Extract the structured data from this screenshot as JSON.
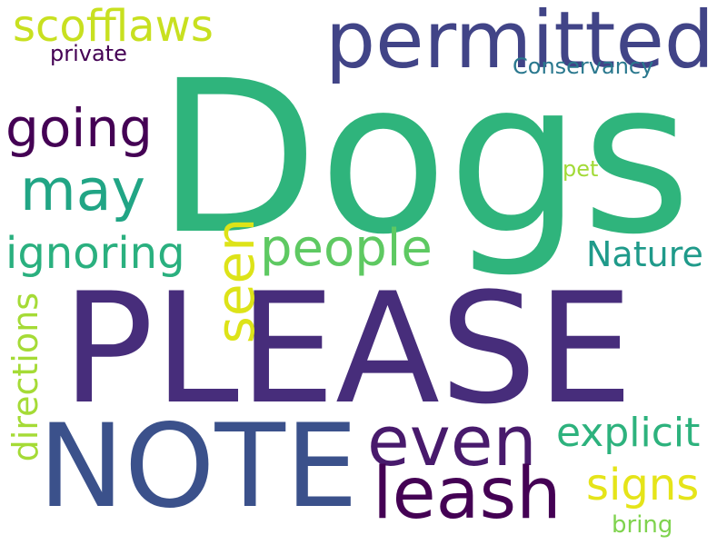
{
  "words": [
    {
      "key": "dogs",
      "text": "Dogs",
      "color": "#2fb47c"
    },
    {
      "key": "please",
      "text": "PLEASE",
      "color": "#472d7b"
    },
    {
      "key": "note",
      "text": "NOTE",
      "color": "#3b518b"
    },
    {
      "key": "permitted",
      "text": "permitted",
      "color": "#414487"
    },
    {
      "key": "scofflaws",
      "text": "scofflaws",
      "color": "#c8e020"
    },
    {
      "key": "private",
      "text": "private",
      "color": "#440154"
    },
    {
      "key": "conservancy",
      "text": "Conservancy",
      "color": "#2a788e"
    },
    {
      "key": "going",
      "text": "going",
      "color": "#440154"
    },
    {
      "key": "may",
      "text": "may",
      "color": "#21a585"
    },
    {
      "key": "seen",
      "text": "seen",
      "color": "#dde318"
    },
    {
      "key": "ignoring",
      "text": "ignoring",
      "color": "#2ab07f"
    },
    {
      "key": "people",
      "text": "people",
      "color": "#5ec962"
    },
    {
      "key": "pet",
      "text": "pet",
      "color": "#a2da37"
    },
    {
      "key": "nature",
      "text": "Nature",
      "color": "#1f9a8a"
    },
    {
      "key": "directions",
      "text": "directions",
      "color": "#a5db36"
    },
    {
      "key": "even",
      "text": "even",
      "color": "#481a6c"
    },
    {
      "key": "explicit",
      "text": "explicit",
      "color": "#2db27d"
    },
    {
      "key": "leash",
      "text": "leash",
      "color": "#440154"
    },
    {
      "key": "signs",
      "text": "signs",
      "color": "#e5e419"
    },
    {
      "key": "bring",
      "text": "bring",
      "color": "#7fd34e"
    }
  ]
}
